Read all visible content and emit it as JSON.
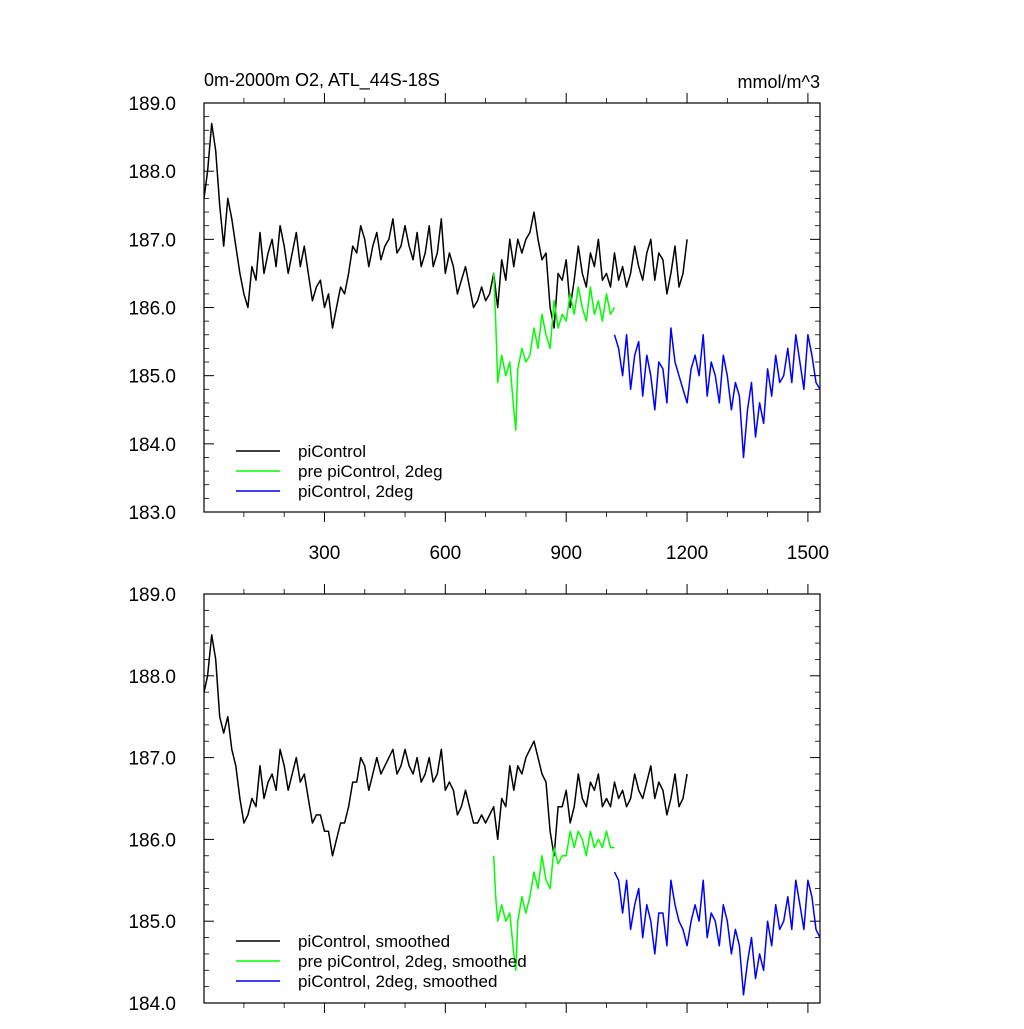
{
  "chart_data": [
    {
      "type": "line",
      "title": "0m-2000m O2, ATL_44S-18S",
      "units": "mmol/m^3",
      "xlim": [
        1,
        1530
      ],
      "ylim": [
        183.0,
        189.0
      ],
      "x_ticks": [
        300,
        600,
        900,
        1200,
        1500
      ],
      "y_ticks": [
        183.0,
        184.0,
        185.0,
        186.0,
        187.0,
        188.0,
        189.0
      ],
      "x_ticks_labels": [
        "300",
        "600",
        "900",
        "1200",
        "1500"
      ],
      "y_ticks_labels": [
        "183.0",
        "184.0",
        "185.0",
        "186.0",
        "187.0",
        "188.0",
        "189.0"
      ],
      "legend_placement": "bottom-left",
      "series": [
        {
          "name": "piControl",
          "color": "#000000",
          "x": [
            1,
            10,
            20,
            30,
            40,
            50,
            60,
            70,
            80,
            90,
            100,
            110,
            120,
            130,
            140,
            150,
            160,
            170,
            180,
            190,
            200,
            210,
            220,
            230,
            240,
            250,
            260,
            270,
            280,
            290,
            300,
            310,
            320,
            330,
            340,
            350,
            360,
            370,
            380,
            390,
            400,
            410,
            420,
            430,
            440,
            450,
            460,
            470,
            480,
            490,
            500,
            510,
            520,
            530,
            540,
            550,
            560,
            570,
            580,
            590,
            600,
            610,
            620,
            630,
            640,
            650,
            660,
            670,
            680,
            690,
            700,
            710,
            720,
            730,
            740,
            750,
            760,
            770,
            780,
            790,
            800,
            810,
            820,
            830,
            840,
            850,
            860,
            870,
            880,
            890,
            900,
            910,
            920,
            930,
            940,
            950,
            960,
            970,
            980,
            990,
            1000,
            1010,
            1020,
            1030,
            1040,
            1050,
            1060,
            1070,
            1080,
            1090,
            1100,
            1110,
            1120,
            1130,
            1140,
            1150,
            1160,
            1170,
            1180,
            1190,
            1200
          ],
          "y": [
            187.6,
            188.0,
            188.7,
            188.3,
            187.5,
            186.9,
            187.6,
            187.3,
            186.9,
            186.5,
            186.2,
            186.0,
            186.6,
            186.4,
            187.1,
            186.5,
            186.8,
            187.0,
            186.6,
            187.2,
            186.9,
            186.5,
            186.8,
            187.1,
            186.6,
            186.9,
            186.5,
            186.1,
            186.3,
            186.4,
            186.0,
            186.2,
            185.7,
            186.0,
            186.3,
            186.2,
            186.5,
            186.9,
            186.8,
            187.2,
            187.0,
            186.6,
            186.9,
            187.1,
            186.7,
            186.9,
            187.0,
            187.3,
            186.8,
            186.9,
            187.2,
            186.9,
            186.7,
            187.1,
            186.6,
            186.8,
            187.2,
            186.6,
            186.8,
            187.3,
            186.5,
            186.8,
            186.6,
            186.2,
            186.4,
            186.6,
            186.3,
            186.0,
            186.1,
            186.3,
            186.1,
            186.2,
            186.5,
            186.0,
            186.7,
            186.4,
            187.0,
            186.6,
            187.0,
            186.8,
            187.0,
            187.1,
            187.4,
            187.0,
            186.7,
            186.8,
            186.0,
            185.7,
            186.5,
            186.4,
            186.7,
            186.0,
            186.4,
            186.9,
            186.5,
            186.3,
            186.8,
            186.6,
            187.0,
            186.4,
            186.5,
            186.3,
            186.8,
            186.4,
            186.6,
            186.3,
            186.5,
            186.9,
            186.6,
            186.4,
            186.8,
            187.0,
            186.4,
            186.8,
            186.7,
            186.2,
            186.5,
            186.9,
            186.3,
            186.5,
            187.0
          ]
        },
        {
          "name": "pre piControl, 2deg",
          "color": "#00ff00",
          "x": [
            720,
            725,
            730,
            740,
            750,
            760,
            770,
            775,
            780,
            790,
            800,
            810,
            820,
            830,
            840,
            850,
            860,
            870,
            880,
            890,
            900,
            910,
            920,
            930,
            940,
            950,
            960,
            970,
            980,
            990,
            1000,
            1010,
            1020
          ],
          "y": [
            186.5,
            185.8,
            184.9,
            185.3,
            185.0,
            185.2,
            184.5,
            184.2,
            185.1,
            185.4,
            185.2,
            185.3,
            185.7,
            185.4,
            185.9,
            185.6,
            185.4,
            186.1,
            185.7,
            185.9,
            185.8,
            186.2,
            185.9,
            186.3,
            186.0,
            185.8,
            186.3,
            185.9,
            186.1,
            185.8,
            186.2,
            185.9,
            186.0
          ]
        },
        {
          "name": "piControl, 2deg",
          "color": "#0000ff",
          "x": [
            1020,
            1030,
            1040,
            1050,
            1060,
            1070,
            1080,
            1090,
            1100,
            1110,
            1120,
            1130,
            1140,
            1150,
            1160,
            1170,
            1180,
            1190,
            1200,
            1210,
            1220,
            1230,
            1240,
            1250,
            1260,
            1270,
            1280,
            1290,
            1300,
            1310,
            1320,
            1330,
            1340,
            1350,
            1360,
            1370,
            1380,
            1390,
            1400,
            1410,
            1420,
            1430,
            1440,
            1450,
            1460,
            1470,
            1480,
            1490,
            1500,
            1510,
            1520,
            1530
          ],
          "y": [
            185.6,
            185.4,
            185.0,
            185.6,
            184.8,
            185.3,
            185.5,
            184.7,
            185.3,
            185.0,
            184.5,
            185.2,
            185.1,
            184.6,
            185.7,
            185.2,
            185.0,
            184.8,
            184.6,
            185.1,
            185.3,
            185.0,
            185.6,
            184.7,
            185.2,
            185.0,
            184.6,
            185.3,
            185.0,
            184.5,
            184.9,
            184.7,
            183.8,
            184.5,
            184.9,
            184.1,
            184.6,
            184.3,
            185.1,
            184.7,
            185.3,
            184.9,
            185.0,
            185.4,
            184.9,
            185.6,
            185.2,
            184.8,
            185.6,
            185.3,
            184.9,
            184.8
          ]
        }
      ]
    },
    {
      "type": "line",
      "xlim": [
        1,
        1530
      ],
      "ylim": [
        184.0,
        189.0
      ],
      "x_ticks": [
        300,
        600,
        900,
        1200,
        1500
      ],
      "y_ticks": [
        184.0,
        185.0,
        186.0,
        187.0,
        188.0,
        189.0
      ],
      "y_ticks_labels": [
        "184.0",
        "185.0",
        "186.0",
        "187.0",
        "188.0",
        "189.0"
      ],
      "legend_placement": "bottom-left",
      "series": [
        {
          "name": "piControl, smoothed",
          "color": "#000000",
          "x": [
            1,
            10,
            20,
            30,
            40,
            50,
            60,
            70,
            80,
            90,
            100,
            110,
            120,
            130,
            140,
            150,
            160,
            170,
            180,
            190,
            200,
            210,
            220,
            230,
            240,
            250,
            260,
            270,
            280,
            290,
            300,
            310,
            320,
            330,
            340,
            350,
            360,
            370,
            380,
            390,
            400,
            410,
            420,
            430,
            440,
            450,
            460,
            470,
            480,
            490,
            500,
            510,
            520,
            530,
            540,
            550,
            560,
            570,
            580,
            590,
            600,
            610,
            620,
            630,
            640,
            650,
            660,
            670,
            680,
            690,
            700,
            710,
            720,
            730,
            740,
            750,
            760,
            770,
            780,
            790,
            800,
            810,
            820,
            830,
            840,
            850,
            860,
            870,
            880,
            890,
            900,
            910,
            920,
            930,
            940,
            950,
            960,
            970,
            980,
            990,
            1000,
            1010,
            1020,
            1030,
            1040,
            1050,
            1060,
            1070,
            1080,
            1090,
            1100,
            1110,
            1120,
            1130,
            1140,
            1150,
            1160,
            1170,
            1180,
            1190,
            1200
          ],
          "y": [
            187.8,
            188.0,
            188.5,
            188.2,
            187.5,
            187.3,
            187.5,
            187.1,
            186.9,
            186.5,
            186.2,
            186.3,
            186.5,
            186.4,
            186.9,
            186.5,
            186.7,
            186.8,
            186.6,
            187.1,
            186.9,
            186.6,
            186.8,
            187.0,
            186.7,
            186.8,
            186.5,
            186.2,
            186.3,
            186.3,
            186.1,
            186.1,
            185.8,
            186.0,
            186.2,
            186.2,
            186.4,
            186.7,
            186.7,
            187.0,
            186.9,
            186.6,
            186.8,
            187.0,
            186.8,
            186.9,
            187.0,
            187.1,
            186.8,
            186.9,
            187.1,
            186.9,
            186.8,
            187.0,
            186.7,
            186.8,
            187.0,
            186.7,
            186.8,
            187.1,
            186.6,
            186.7,
            186.6,
            186.3,
            186.4,
            186.6,
            186.4,
            186.2,
            186.2,
            186.3,
            186.2,
            186.3,
            186.4,
            186.0,
            186.5,
            186.4,
            186.9,
            186.6,
            186.9,
            186.8,
            187.0,
            187.1,
            187.2,
            187.0,
            186.8,
            186.7,
            186.1,
            185.8,
            186.4,
            186.4,
            186.6,
            186.2,
            186.4,
            186.8,
            186.5,
            186.4,
            186.7,
            186.6,
            186.8,
            186.4,
            186.5,
            186.4,
            186.7,
            186.5,
            186.6,
            186.4,
            186.5,
            186.8,
            186.6,
            186.5,
            186.7,
            186.9,
            186.5,
            186.7,
            186.6,
            186.3,
            186.5,
            186.8,
            186.4,
            186.5,
            186.8
          ]
        },
        {
          "name": "pre piControl, 2deg, smoothed",
          "color": "#00ff00",
          "x": [
            720,
            725,
            730,
            740,
            750,
            760,
            770,
            775,
            780,
            790,
            800,
            810,
            820,
            830,
            840,
            850,
            860,
            870,
            880,
            890,
            900,
            910,
            920,
            930,
            940,
            950,
            960,
            970,
            980,
            990,
            1000,
            1010,
            1020
          ],
          "y": [
            185.8,
            185.3,
            185.0,
            185.2,
            185.0,
            185.1,
            184.6,
            184.4,
            185.0,
            185.3,
            185.1,
            185.3,
            185.6,
            185.4,
            185.8,
            185.5,
            185.4,
            185.9,
            185.7,
            185.8,
            185.8,
            186.1,
            185.9,
            186.1,
            186.0,
            185.8,
            186.1,
            185.9,
            186.0,
            185.9,
            186.1,
            185.9,
            185.9
          ]
        },
        {
          "name": "piControl, 2deg, smoothed",
          "color": "#0000ff",
          "x": [
            1020,
            1030,
            1040,
            1050,
            1060,
            1070,
            1080,
            1090,
            1100,
            1110,
            1120,
            1130,
            1140,
            1150,
            1160,
            1170,
            1180,
            1190,
            1200,
            1210,
            1220,
            1230,
            1240,
            1250,
            1260,
            1270,
            1280,
            1290,
            1300,
            1310,
            1320,
            1330,
            1340,
            1350,
            1360,
            1370,
            1380,
            1390,
            1400,
            1410,
            1420,
            1430,
            1440,
            1450,
            1460,
            1470,
            1480,
            1490,
            1500,
            1510,
            1520,
            1530
          ],
          "y": [
            185.6,
            185.5,
            185.1,
            185.5,
            184.9,
            185.2,
            185.4,
            184.8,
            185.2,
            185.0,
            184.6,
            185.1,
            185.1,
            184.7,
            185.5,
            185.2,
            185.0,
            184.9,
            184.7,
            185.0,
            185.2,
            185.0,
            185.5,
            184.8,
            185.1,
            185.0,
            184.7,
            185.2,
            185.0,
            184.6,
            184.9,
            184.7,
            184.1,
            184.5,
            184.8,
            184.3,
            184.6,
            184.4,
            185.0,
            184.7,
            185.2,
            184.9,
            185.0,
            185.3,
            184.9,
            185.5,
            185.2,
            184.9,
            185.5,
            185.3,
            184.9,
            184.8
          ]
        }
      ]
    }
  ]
}
